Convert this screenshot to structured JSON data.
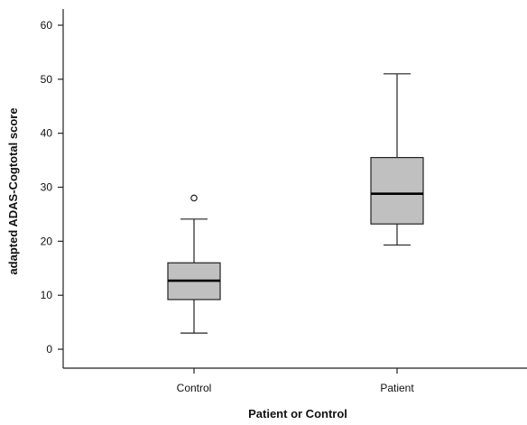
{
  "chart_data": {
    "type": "box",
    "title": "",
    "xlabel": "Patient or Control",
    "ylabel": "adapted ADAS-Cogtotal score",
    "ylim": [
      -3.5,
      63
    ],
    "yticks": [
      0,
      10,
      20,
      30,
      40,
      50,
      60
    ],
    "categories": [
      "Control",
      "Patient"
    ],
    "boxes": [
      {
        "category": "Control",
        "whisker_low": 3,
        "q1": 9.2,
        "median": 12.7,
        "q3": 16,
        "whisker_high": 24.1,
        "outliers": [
          28
        ]
      },
      {
        "category": "Patient",
        "whisker_low": 19.3,
        "q1": 23.2,
        "median": 28.8,
        "q3": 35.5,
        "whisker_high": 51,
        "outliers": []
      }
    ],
    "grid": false,
    "legend": "none"
  }
}
